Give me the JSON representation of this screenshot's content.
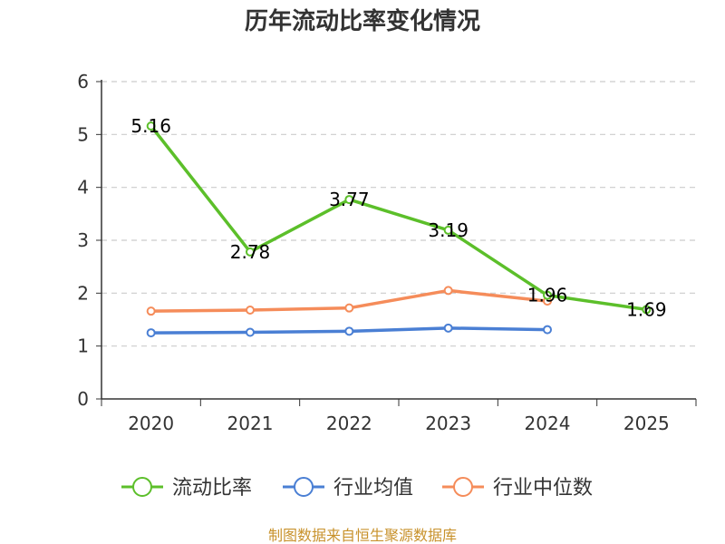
{
  "chart_data": {
    "type": "line",
    "title": "历年流动比率变化情况",
    "categories": [
      "2020",
      "2021",
      "2022",
      "2023",
      "2024",
      "2025"
    ],
    "ylim": [
      0,
      6
    ],
    "yticks": [
      0,
      1,
      2,
      3,
      4,
      5,
      6
    ],
    "grid": true,
    "legend_position": "bottom",
    "series": [
      {
        "name": "流动比率",
        "color": "#5cbf2a",
        "values": [
          5.16,
          2.78,
          3.77,
          3.19,
          1.96,
          1.69
        ],
        "labels": [
          "5.16",
          "2.78",
          "3.77",
          "3.19",
          "1.96",
          "1.69"
        ]
      },
      {
        "name": "行业均值",
        "color": "#4a7fd4",
        "values": [
          1.25,
          1.26,
          1.28,
          1.34,
          1.31,
          null
        ]
      },
      {
        "name": "行业中位数",
        "color": "#f58c5a",
        "values": [
          1.66,
          1.68,
          1.72,
          2.05,
          1.85,
          null
        ]
      }
    ],
    "source": "制图数据来自恒生聚源数据库"
  }
}
